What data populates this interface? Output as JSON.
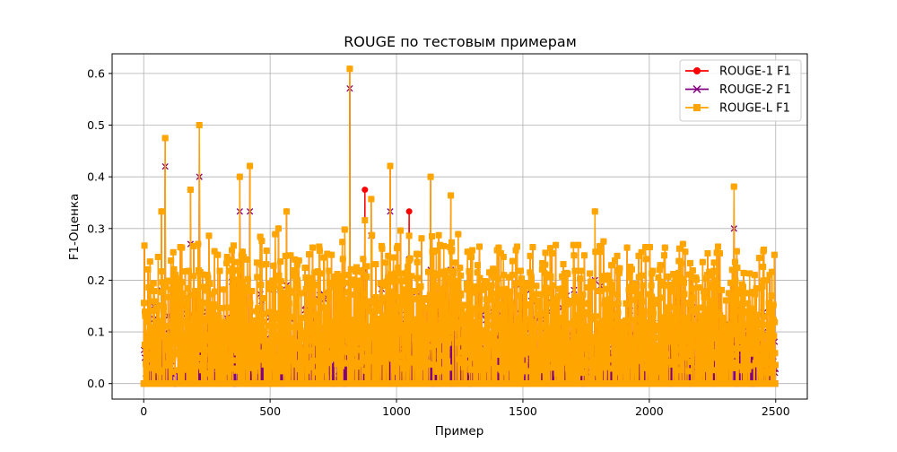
{
  "chart_data": {
    "type": "line",
    "title": "ROUGE по тестовым примерам",
    "xlabel": "Пример",
    "ylabel": "F1-Оценка",
    "xlim": [
      -125,
      2625
    ],
    "ylim": [
      -0.03,
      0.638
    ],
    "xticks": [
      0,
      500,
      1000,
      1500,
      2000,
      2500
    ],
    "xtick_labels": [
      "0",
      "500",
      "1000",
      "1500",
      "2000",
      "2500"
    ],
    "yticks": [
      0.0,
      0.1,
      0.2,
      0.3,
      0.4,
      0.5,
      0.6
    ],
    "ytick_labels": [
      "0.0",
      "0.1",
      "0.2",
      "0.3",
      "0.4",
      "0.5",
      "0.6"
    ],
    "grid": true,
    "legend_position": "top-right",
    "n_points": 2500,
    "series": [
      {
        "name": "ROUGE-1 F1",
        "color": "#ff0000",
        "marker": "circle"
      },
      {
        "name": "ROUGE-2 F1",
        "color": "#800080",
        "marker": "x"
      },
      {
        "name": "ROUGE-L F1",
        "color": "#ffa500",
        "marker": "square"
      }
    ],
    "annotated_peaks": {
      "x": [
        70,
        85,
        185,
        220,
        380,
        420,
        565,
        815,
        875,
        900,
        975,
        1050,
        1135,
        1215,
        1785,
        2335
      ],
      "rouge1": [
        0.333,
        0.475,
        0.375,
        0.5,
        0.4,
        0.421,
        0.333,
        0.609,
        0.375,
        0.357,
        0.421,
        0.333,
        0.4,
        0.364,
        0.333,
        0.381
      ],
      "rouge2": [
        0.18,
        0.42,
        0.27,
        0.4,
        0.333,
        0.333,
        0.19,
        0.571,
        0.22,
        0.286,
        0.333,
        0.24,
        0.22,
        0.22,
        0.2,
        0.3
      ],
      "rougeL": [
        0.333,
        0.475,
        0.375,
        0.5,
        0.4,
        0.421,
        0.333,
        0.609,
        0.316,
        0.357,
        0.421,
        0.286,
        0.4,
        0.364,
        0.333,
        0.381
      ]
    }
  }
}
